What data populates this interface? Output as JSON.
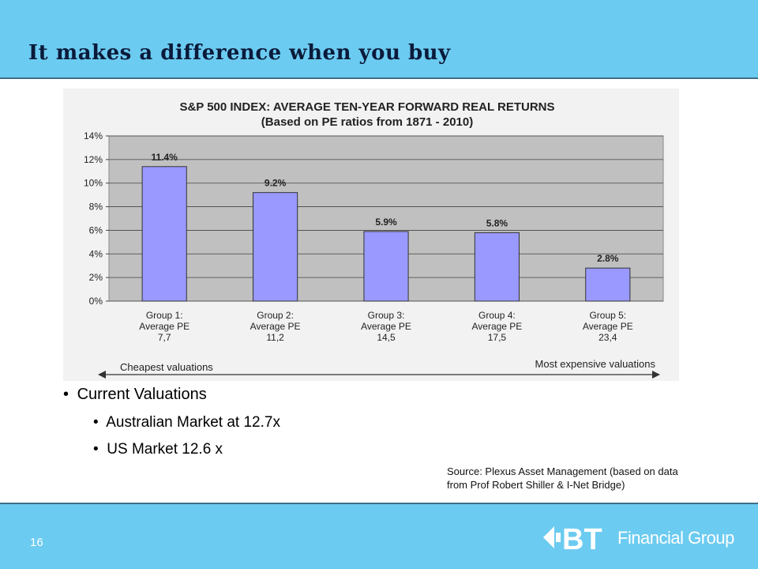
{
  "slide": {
    "title": "It makes a difference when you buy",
    "page_number": "16"
  },
  "chart_data": {
    "type": "bar",
    "title": "S&P 500 INDEX: AVERAGE TEN-YEAR FORWARD REAL RETURNS",
    "subtitle": "(Based on PE ratios from 1871 - 2010)",
    "categories": [
      [
        "Group 1:",
        "Average PE",
        "7,7"
      ],
      [
        "Group 2:",
        "Average PE",
        "11,2"
      ],
      [
        "Group 3:",
        "Average PE",
        "14,5"
      ],
      [
        "Group 4:",
        "Average PE",
        "17,5"
      ],
      [
        "Group 5:",
        "Average PE",
        "23,4"
      ]
    ],
    "values": [
      11.4,
      9.2,
      5.9,
      5.8,
      2.8
    ],
    "data_labels": [
      "11.4%",
      "9.2%",
      "5.9%",
      "5.8%",
      "2.8%"
    ],
    "ylim": [
      0,
      14
    ],
    "yticks": [
      "0%",
      "2%",
      "4%",
      "6%",
      "8%",
      "10%",
      "12%",
      "14%"
    ],
    "grid": true,
    "bar_color": "#9999ff",
    "plot_background": "#c0c0c0",
    "arrow_left_label": "Cheapest valuations",
    "arrow_right_label": "Most expensive valuations"
  },
  "bullets": {
    "main": "Current Valuations",
    "items": [
      "Australian Market at 12.7x",
      "US Market 12.6 x"
    ]
  },
  "source": {
    "line1": "Source: Plexus Asset Management (based on data",
    "line2": "from Prof Robert Shiller & I-Net Bridge)"
  },
  "logo": {
    "mark": "BT",
    "text": "Financial Group"
  },
  "colors": {
    "header_bg": "#6ccbf0",
    "title_color": "#0b1a3a"
  }
}
